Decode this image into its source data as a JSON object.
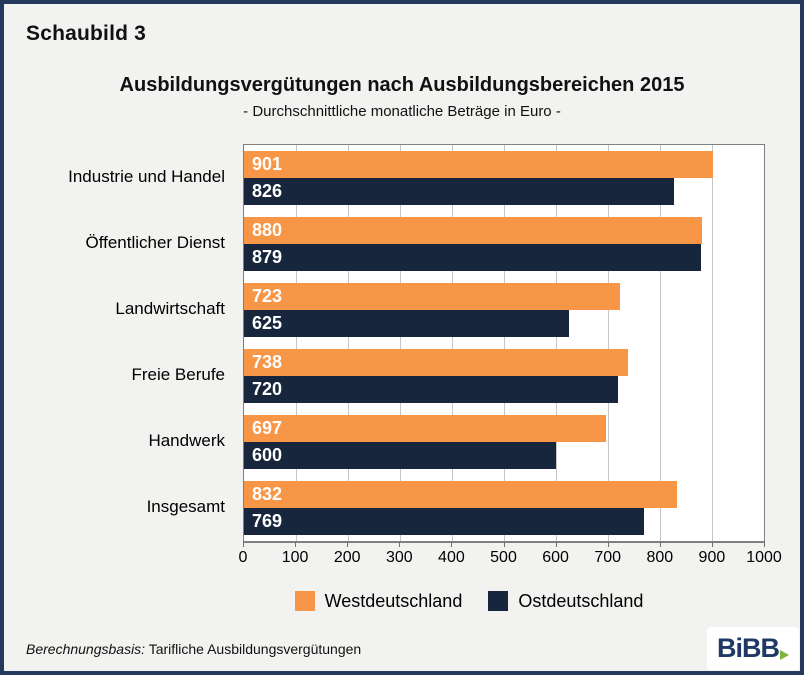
{
  "header": {
    "figure_label": "Schaubild 3"
  },
  "chart_data": {
    "type": "bar",
    "orientation": "horizontal",
    "title": "Ausbildungsvergütungen nach Ausbildungsbereichen 2015",
    "subtitle": "- Durchschnittliche monatliche Beträge in Euro -",
    "categories": [
      "Industrie und Handel",
      "Öffentlicher Dienst",
      "Landwirtschaft",
      "Freie Berufe",
      "Handwerk",
      "Insgesamt"
    ],
    "series": [
      {
        "name": "Westdeutschland",
        "color": "#F79646",
        "values": [
          901,
          880,
          723,
          738,
          697,
          832
        ]
      },
      {
        "name": "Ostdeutschland",
        "color": "#17263D",
        "values": [
          826,
          879,
          625,
          720,
          600,
          769
        ]
      }
    ],
    "xlim": [
      0,
      1000
    ],
    "x_ticks": [
      0,
      100,
      200,
      300,
      400,
      500,
      600,
      700,
      800,
      900,
      1000
    ],
    "grid": "vertical-gridlines-on",
    "legend_position": "bottom",
    "value_label_position": "inside-left",
    "value_label_color": "#FFFFFF"
  },
  "footer": {
    "source_label": "Berechnungsbasis:",
    "source_text": " Tarifliche Ausbildungsvergütungen",
    "logo_text": "BiBB"
  },
  "colors": {
    "west": "#F79646",
    "ost": "#17263D",
    "frame_border": "#24395B",
    "background": "#F2F2F0",
    "plot_background": "#FFFFFF",
    "plot_border": "#808080",
    "gridline": "#C6C6C6",
    "logo_blue": "#1F3864",
    "logo_green": "#7FB441"
  }
}
